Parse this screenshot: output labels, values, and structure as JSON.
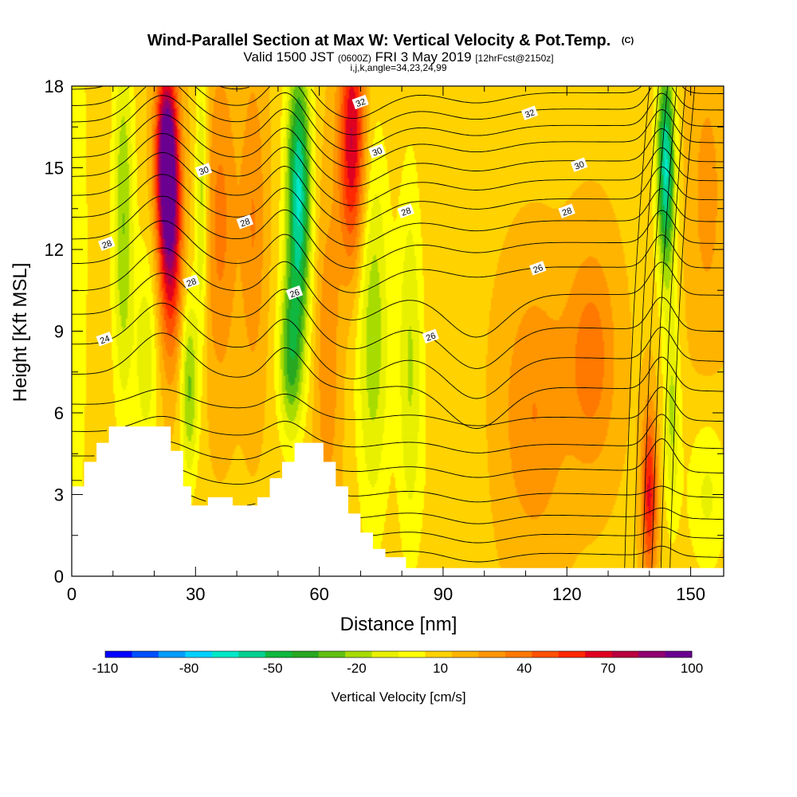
{
  "chart_data": {
    "type": "contour",
    "title": "Wind-Parallel Section at Max W: Vertical Velocity & Pot.Temp.",
    "copyright": "(C)",
    "subtitle": {
      "part1": "Valid 1500 JST",
      "part2": "(0600Z)",
      "part3": "FRI 3 May 2019",
      "part4": "[12hrFcst@2150z]"
    },
    "subtitle2": "i,j,k,angle=34,23,24,99",
    "xlabel": "Distance [nm]",
    "ylabel": "Height [Kft MSL]",
    "xlim": [
      0,
      158
    ],
    "ylim": [
      0,
      18
    ],
    "x_ticks": [
      "0",
      "30",
      "60",
      "90",
      "120",
      "150"
    ],
    "y_ticks": [
      "0",
      "3",
      "6",
      "9",
      "12",
      "15",
      "18"
    ],
    "colorbar": {
      "title": "Vertical Velocity [cm/s]",
      "labels": [
        "-110",
        "-80",
        "-50",
        "-20",
        "10",
        "40",
        "70",
        "100"
      ],
      "label_values": [
        -110,
        -80,
        -50,
        -20,
        10,
        40,
        70,
        100
      ],
      "range": [
        -110,
        100
      ],
      "levels": [
        -110,
        -100,
        -90,
        -80,
        -70,
        -60,
        -50,
        -40,
        -30,
        -20,
        -10,
        0,
        10,
        20,
        30,
        40,
        50,
        60,
        70,
        80,
        90,
        100
      ],
      "colors": [
        "#0000ff",
        "#0050ff",
        "#009cff",
        "#00d0ff",
        "#00e8c8",
        "#00d090",
        "#10b840",
        "#28a820",
        "#60c010",
        "#a8dc00",
        "#e8f000",
        "#ffff00",
        "#ffd200",
        "#ffb400",
        "#ff9600",
        "#ff7800",
        "#ff5000",
        "#ff2800",
        "#e00020",
        "#b80040",
        "#900070",
        "#6a0090"
      ]
    },
    "pot_temp_contour_labels": [
      {
        "label": "24",
        "x": 8,
        "y": 8.7
      },
      {
        "label": "28",
        "x": 8.5,
        "y": 12.2
      },
      {
        "label": "30",
        "x": 32,
        "y": 14.9
      },
      {
        "label": "28",
        "x": 42,
        "y": 13.0
      },
      {
        "label": "28",
        "x": 29,
        "y": 10.8
      },
      {
        "label": "26",
        "x": 54,
        "y": 10.4
      },
      {
        "label": "32",
        "x": 70,
        "y": 17.4
      },
      {
        "label": "30",
        "x": 74,
        "y": 15.6
      },
      {
        "label": "28",
        "x": 81,
        "y": 13.4
      },
      {
        "label": "26",
        "x": 87,
        "y": 8.8
      },
      {
        "label": "32",
        "x": 111,
        "y": 17.0
      },
      {
        "label": "30",
        "x": 123,
        "y": 15.1
      },
      {
        "label": "28",
        "x": 120,
        "y": 13.4
      },
      {
        "label": "26",
        "x": 113,
        "y": 11.3
      }
    ],
    "terrain_profile": [
      [
        0,
        3.3
      ],
      [
        3,
        3.3
      ],
      [
        3,
        4.2
      ],
      [
        6,
        4.2
      ],
      [
        6,
        4.9
      ],
      [
        9,
        4.9
      ],
      [
        9,
        5.5
      ],
      [
        24,
        5.5
      ],
      [
        24,
        4.6
      ],
      [
        27,
        4.6
      ],
      [
        27,
        3.3
      ],
      [
        29,
        3.3
      ],
      [
        29,
        2.6
      ],
      [
        33,
        2.6
      ],
      [
        33,
        2.9
      ],
      [
        39,
        2.9
      ],
      [
        39,
        2.6
      ],
      [
        45,
        2.6
      ],
      [
        45,
        2.9
      ],
      [
        48,
        2.9
      ],
      [
        48,
        3.6
      ],
      [
        51,
        3.6
      ],
      [
        51,
        4.2
      ],
      [
        54,
        4.2
      ],
      [
        54,
        4.9
      ],
      [
        61,
        4.9
      ],
      [
        61,
        4.2
      ],
      [
        64,
        4.2
      ],
      [
        64,
        3.3
      ],
      [
        67,
        3.3
      ],
      [
        67,
        2.3
      ],
      [
        70,
        2.3
      ],
      [
        70,
        1.6
      ],
      [
        73,
        1.6
      ],
      [
        73,
        1.0
      ],
      [
        76,
        1.0
      ],
      [
        76,
        0.7
      ],
      [
        81,
        0.7
      ],
      [
        81,
        0.3
      ],
      [
        158,
        0.3
      ]
    ],
    "vertical_velocity_field": [
      {
        "x": 1,
        "y": 12,
        "w": -18,
        "sx": 3,
        "sy": 12
      },
      {
        "x": 12.5,
        "y": 13,
        "w": -38,
        "sx": 2.6,
        "sy": 7
      },
      {
        "x": 18,
        "y": 8,
        "w": -25,
        "sx": 2.8,
        "sy": 4
      },
      {
        "x": 23,
        "y": 15.5,
        "w": 95,
        "sx": 2.6,
        "sy": 3.2
      },
      {
        "x": 24,
        "y": 12,
        "w": 60,
        "sx": 2.8,
        "sy": 4
      },
      {
        "x": 28.5,
        "y": 7,
        "w": -40,
        "sx": 2.2,
        "sy": 3.5
      },
      {
        "x": 31.5,
        "y": 14,
        "w": -35,
        "sx": 1.5,
        "sy": 5
      },
      {
        "x": 36,
        "y": 13,
        "w": 25,
        "sx": 4,
        "sy": 6
      },
      {
        "x": 44,
        "y": 13,
        "w": 22,
        "sx": 3,
        "sy": 6
      },
      {
        "x": 55,
        "y": 14,
        "w": -80,
        "sx": 3,
        "sy": 5
      },
      {
        "x": 53,
        "y": 8,
        "w": -45,
        "sx": 3,
        "sy": 3
      },
      {
        "x": 62,
        "y": 8,
        "w": 20,
        "sx": 3,
        "sy": 6
      },
      {
        "x": 68,
        "y": 16,
        "w": 65,
        "sx": 3.2,
        "sy": 4.5
      },
      {
        "x": 73,
        "y": 9,
        "w": -35,
        "sx": 4,
        "sy": 7
      },
      {
        "x": 82,
        "y": 8,
        "w": -28,
        "sx": 3,
        "sy": 7
      },
      {
        "x": 90,
        "y": 4,
        "w": -5,
        "sx": 8,
        "sy": 5
      },
      {
        "x": 112,
        "y": 6,
        "w": 22,
        "sx": 8,
        "sy": 5
      },
      {
        "x": 126,
        "y": 8,
        "w": 28,
        "sx": 6,
        "sy": 4
      },
      {
        "x": 140,
        "y": 3,
        "w": 55,
        "sx": 1.8,
        "sy": 3
      },
      {
        "x": 144,
        "y": 15,
        "w": -80,
        "sx": 2.2,
        "sy": 4
      },
      {
        "x": 145.5,
        "y": 6,
        "w": -30,
        "sx": 2,
        "sy": 4
      },
      {
        "x": 154,
        "y": 14,
        "w": 15,
        "sx": 5,
        "sy": 6
      },
      {
        "x": 154,
        "y": 3,
        "w": -20,
        "sx": 5,
        "sy": 3
      }
    ],
    "vertical_velocity_background": 8
  }
}
